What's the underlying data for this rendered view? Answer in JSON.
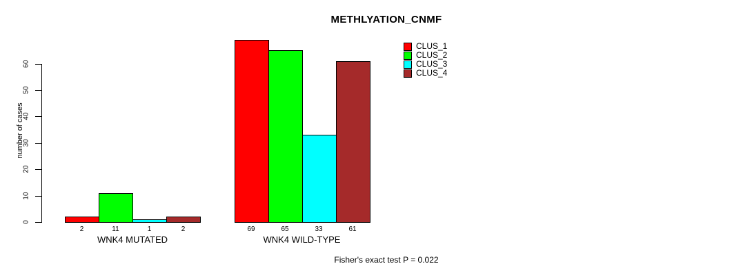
{
  "chart_data": {
    "type": "bar",
    "title": "METHLYATION_CNMF",
    "ylabel": "number of cases",
    "categories": [
      "WNK4 MUTATED",
      "WNK4 WILD-TYPE"
    ],
    "series": [
      {
        "name": "CLUS_1",
        "color": "#FF0000",
        "values": [
          2,
          69
        ]
      },
      {
        "name": "CLUS_2",
        "color": "#00FF00",
        "values": [
          11,
          65
        ]
      },
      {
        "name": "CLUS_3",
        "color": "#00FFFF",
        "values": [
          1,
          33
        ]
      },
      {
        "name": "CLUS_4",
        "color": "#A52A2A",
        "values": [
          2,
          61
        ]
      }
    ],
    "yticks": [
      0,
      10,
      20,
      30,
      40,
      50,
      60
    ],
    "ylim": [
      0,
      60
    ],
    "grid": false,
    "bar_value_labels": true,
    "legend_position": "top-right",
    "annotation": "Fisher's exact test P = 0.022"
  }
}
